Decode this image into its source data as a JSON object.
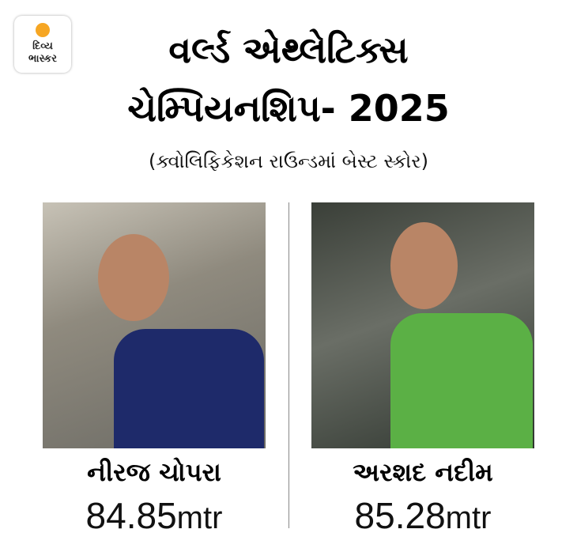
{
  "logo": {
    "line1": "દિવ્ય",
    "line2": "ભાસ્કર",
    "accent": "#f6a623"
  },
  "title": {
    "line1": "વર્લ્ડ એથ્લેટિક્સ",
    "line2": "ચેમ્પિયનશિપ- 2025"
  },
  "subtitle": "(ક્વોલિફિકેશન રાઉન્ડમાં બેસ્ટ સ્કોર)",
  "athletes": [
    {
      "name": "નીરજ ચોપરા",
      "score": "84.85",
      "unit": "mtr"
    },
    {
      "name": "અરશદ નદીમ",
      "score": "85.28",
      "unit": "mtr"
    }
  ]
}
